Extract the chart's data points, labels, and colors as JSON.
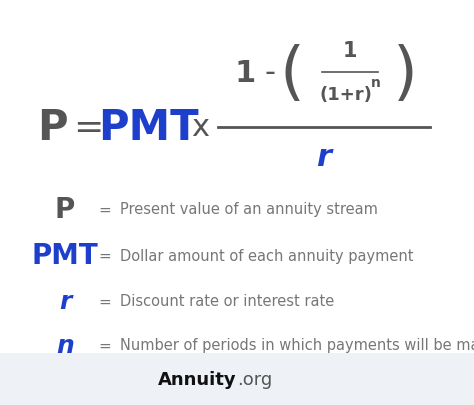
{
  "bg_color": "#ffffff",
  "footer_bg_color": "#eef1f6",
  "blue_color": "#1e3fcc",
  "dark_gray": "#555555",
  "mid_gray": "#777777",
  "figsize": [
    4.74,
    4.06
  ],
  "dpi": 100,
  "legend_items": [
    {
      "symbol": "P",
      "style": "normal",
      "size": 20,
      "color": "#555555",
      "desc": "Present value of an annuity stream"
    },
    {
      "symbol": "PMT",
      "style": "normal",
      "size": 20,
      "color": "#1e3fcc",
      "desc": "Dollar amount of each annuity payment"
    },
    {
      "symbol": "r",
      "style": "italic",
      "size": 18,
      "color": "#1e3fcc",
      "desc": "Discount rate or interest rate"
    },
    {
      "symbol": "n",
      "style": "italic",
      "size": 18,
      "color": "#1e3fcc",
      "desc": "Number of periods in which payments will be made"
    }
  ]
}
